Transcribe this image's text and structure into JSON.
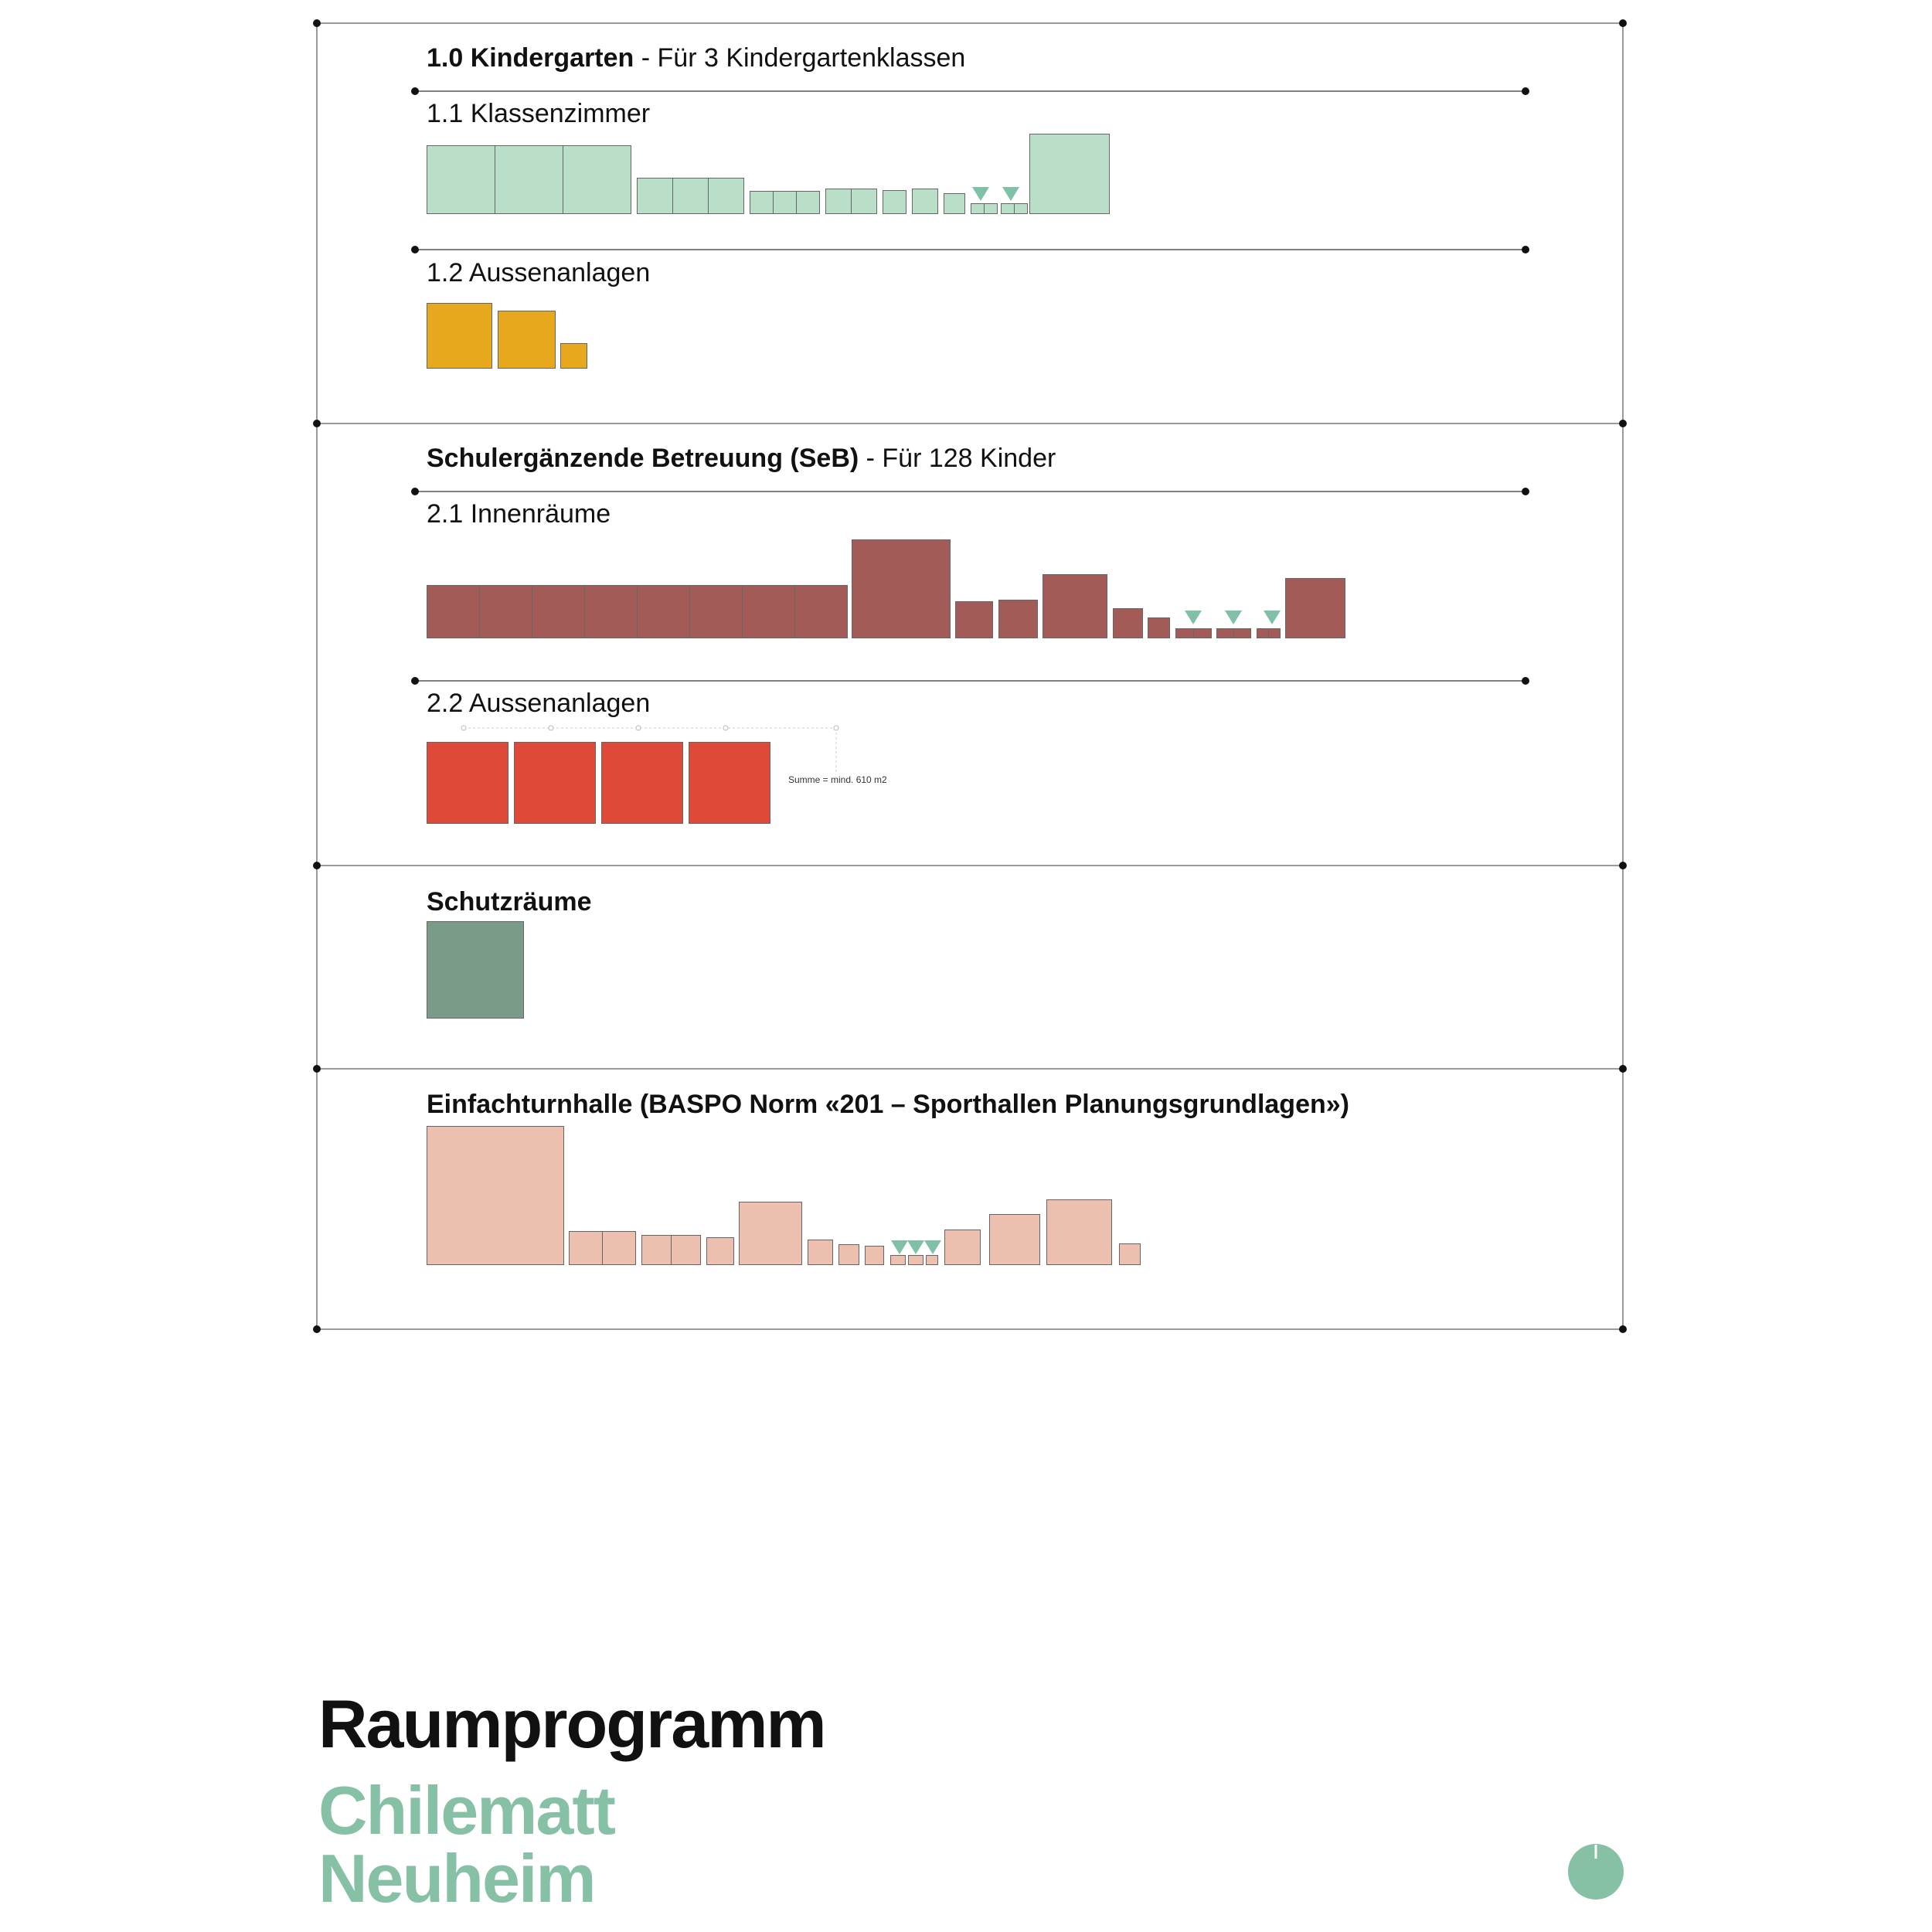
{
  "colors": {
    "kg_class": "#b9dfc8",
    "kg_outdoor": "#e8a81e",
    "seb_indoor": "#a35b58",
    "seb_outdoor": "#de4a37",
    "shelter": "#7a9b87",
    "gym": "#ecbfae",
    "accent": "#86c1a6"
  },
  "sections": {
    "kindergarten": {
      "title_bold": "1.0 Kindergarten",
      "title_rest": " - Für 3 Kindergartenklassen"
    },
    "kg_classrooms": {
      "title": "1.1 Klassenzimmer"
    },
    "kg_outdoor": {
      "title": "1.2 Aussenanlagen"
    },
    "seb": {
      "title_bold": "Schulergänzende Betreuung (SeB)",
      "title_rest": " - Für 128 Kinder"
    },
    "seb_indoor": {
      "title": "2.1 Innenräume"
    },
    "seb_outdoor": {
      "title": "2.2 Aussenanlagen",
      "sum_label": "Summe = mind. 610 m2"
    },
    "shelter": {
      "title_bold": "Schutzräume"
    },
    "gym": {
      "title_bold": "Einfachturnhalle (BASPO Norm «201 – Sporthallen Planungsgrundlagen»)"
    }
  },
  "title": {
    "main": "Raumprogramm",
    "place_line1": "Chilematt",
    "place_line2": "Neuheim"
  }
}
